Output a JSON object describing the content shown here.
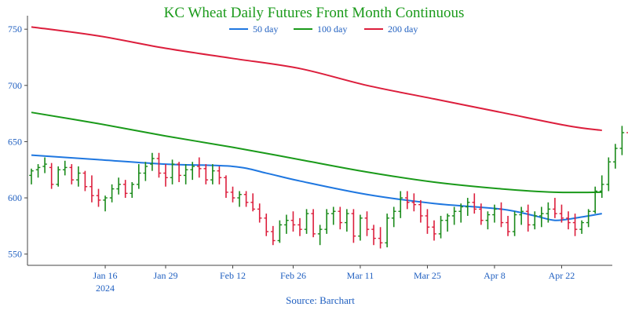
{
  "chart_data": {
    "type": "ohlc",
    "title": "KC Wheat Daily Futures Front Month Continuous",
    "source": "Source: Barchart",
    "ylim": [
      540,
      762
    ],
    "y_ticks": [
      550,
      600,
      650,
      700,
      750
    ],
    "x_ticks": [
      {
        "day": 11,
        "label": "Jan 16",
        "sublabel": "2024"
      },
      {
        "day": 20,
        "label": "Jan 29",
        "sublabel": ""
      },
      {
        "day": 30,
        "label": "Feb 12",
        "sublabel": ""
      },
      {
        "day": 39,
        "label": "Feb 26",
        "sublabel": ""
      },
      {
        "day": 49,
        "label": "Mar 11",
        "sublabel": ""
      },
      {
        "day": 59,
        "label": "Mar 25",
        "sublabel": ""
      },
      {
        "day": 69,
        "label": "Apr 8",
        "sublabel": ""
      },
      {
        "day": 79,
        "label": "Apr 22",
        "sublabel": ""
      }
    ],
    "legend": [
      {
        "name": "50 day",
        "color": "#1f77e0"
      },
      {
        "name": "100 day",
        "color": "#1a9a1a"
      },
      {
        "name": "200 day",
        "color": "#dc1e3c"
      }
    ],
    "colors": {
      "up": "#1a8a1a",
      "down": "#dc1e3c",
      "title": "#1a9a1a",
      "tick": "#1f5fc0",
      "axis": "#444444"
    },
    "ohlc": [
      [
        620,
        626,
        612,
        624
      ],
      [
        625,
        630,
        618,
        627
      ],
      [
        628,
        636,
        622,
        630
      ],
      [
        627,
        631,
        608,
        612
      ],
      [
        612,
        628,
        610,
        625
      ],
      [
        625,
        633,
        620,
        627
      ],
      [
        627,
        630,
        612,
        616
      ],
      [
        616,
        628,
        610,
        622
      ],
      [
        622,
        624,
        606,
        610
      ],
      [
        610,
        620,
        596,
        602
      ],
      [
        602,
        608,
        592,
        598
      ],
      [
        598,
        602,
        588,
        600
      ],
      [
        600,
        612,
        596,
        608
      ],
      [
        608,
        618,
        603,
        612
      ],
      [
        612,
        616,
        600,
        604
      ],
      [
        604,
        614,
        600,
        612
      ],
      [
        612,
        630,
        608,
        622
      ],
      [
        622,
        632,
        615,
        628
      ],
      [
        630,
        640,
        624,
        635
      ],
      [
        635,
        640,
        618,
        622
      ],
      [
        622,
        630,
        610,
        618
      ],
      [
        618,
        634,
        612,
        630
      ],
      [
        630,
        632,
        614,
        620
      ],
      [
        620,
        630,
        612,
        625
      ],
      [
        625,
        632,
        616,
        628
      ],
      [
        628,
        636,
        618,
        626
      ],
      [
        626,
        630,
        612,
        616
      ],
      [
        616,
        630,
        612,
        624
      ],
      [
        624,
        628,
        612,
        618
      ],
      [
        618,
        620,
        600,
        605
      ],
      [
        605,
        610,
        596,
        600
      ],
      [
        600,
        606,
        592,
        603
      ],
      [
        603,
        606,
        592,
        596
      ],
      [
        596,
        604,
        588,
        590
      ],
      [
        590,
        595,
        578,
        582
      ],
      [
        582,
        586,
        566,
        570
      ],
      [
        570,
        575,
        558,
        562
      ],
      [
        562,
        580,
        560,
        576
      ],
      [
        576,
        585,
        568,
        580
      ],
      [
        580,
        588,
        570,
        576
      ],
      [
        576,
        582,
        566,
        572
      ],
      [
        572,
        590,
        568,
        586
      ],
      [
        586,
        590,
        565,
        568
      ],
      [
        568,
        576,
        558,
        572
      ],
      [
        572,
        590,
        568,
        586
      ],
      [
        586,
        592,
        576,
        588
      ],
      [
        588,
        592,
        572,
        578
      ],
      [
        578,
        590,
        570,
        586
      ],
      [
        586,
        590,
        560,
        566
      ],
      [
        566,
        585,
        562,
        582
      ],
      [
        582,
        588,
        566,
        572
      ],
      [
        572,
        576,
        558,
        564
      ],
      [
        564,
        574,
        555,
        560
      ],
      [
        560,
        586,
        556,
        582
      ],
      [
        582,
        592,
        574,
        588
      ],
      [
        588,
        606,
        582,
        600
      ],
      [
        600,
        606,
        590,
        596
      ],
      [
        596,
        604,
        588,
        594
      ],
      [
        594,
        598,
        578,
        584
      ],
      [
        584,
        590,
        568,
        574
      ],
      [
        574,
        580,
        562,
        568
      ],
      [
        568,
        584,
        564,
        580
      ],
      [
        580,
        586,
        570,
        584
      ],
      [
        584,
        592,
        576,
        588
      ],
      [
        588,
        595,
        578,
        592
      ],
      [
        592,
        600,
        584,
        596
      ],
      [
        596,
        604,
        586,
        590
      ],
      [
        590,
        595,
        576,
        580
      ],
      [
        580,
        588,
        572,
        585
      ],
      [
        585,
        594,
        578,
        590
      ],
      [
        590,
        596,
        574,
        578
      ],
      [
        578,
        584,
        566,
        570
      ],
      [
        570,
        588,
        566,
        585
      ],
      [
        585,
        592,
        576,
        588
      ],
      [
        588,
        594,
        570,
        576
      ],
      [
        576,
        588,
        572,
        584
      ],
      [
        584,
        592,
        574,
        586
      ],
      [
        586,
        596,
        578,
        590
      ],
      [
        590,
        600,
        582,
        586
      ],
      [
        586,
        594,
        578,
        582
      ],
      [
        582,
        588,
        572,
        578
      ],
      [
        578,
        586,
        566,
        572
      ],
      [
        572,
        580,
        568,
        578
      ],
      [
        578,
        590,
        574,
        588
      ],
      [
        588,
        610,
        586,
        606
      ],
      [
        606,
        620,
        600,
        612
      ],
      [
        612,
        636,
        606,
        632
      ],
      [
        632,
        648,
        626,
        644
      ],
      [
        644,
        664,
        638,
        658
      ],
      [
        658,
        666,
        645,
        652
      ]
    ],
    "series": [
      {
        "name": "50 day",
        "color": "#1f77e0",
        "values": [
          [
            0,
            638
          ],
          [
            10,
            634
          ],
          [
            20,
            630
          ],
          [
            30,
            628
          ],
          [
            35,
            622
          ],
          [
            40,
            615
          ],
          [
            50,
            603
          ],
          [
            60,
            595
          ],
          [
            70,
            590
          ],
          [
            75,
            584
          ],
          [
            78,
            580
          ],
          [
            81,
            582
          ],
          [
            85,
            586
          ]
        ]
      },
      {
        "name": "100 day",
        "color": "#1a9a1a",
        "values": [
          [
            0,
            676
          ],
          [
            10,
            666
          ],
          [
            20,
            655
          ],
          [
            30,
            645
          ],
          [
            40,
            634
          ],
          [
            50,
            623
          ],
          [
            60,
            614
          ],
          [
            70,
            608
          ],
          [
            78,
            605
          ],
          [
            85,
            605
          ]
        ]
      },
      {
        "name": "200 day",
        "color": "#dc1e3c",
        "values": [
          [
            0,
            752
          ],
          [
            10,
            744
          ],
          [
            20,
            733
          ],
          [
            30,
            724
          ],
          [
            40,
            715
          ],
          [
            50,
            700
          ],
          [
            60,
            688
          ],
          [
            70,
            676
          ],
          [
            80,
            664
          ],
          [
            85,
            660
          ]
        ]
      }
    ]
  }
}
